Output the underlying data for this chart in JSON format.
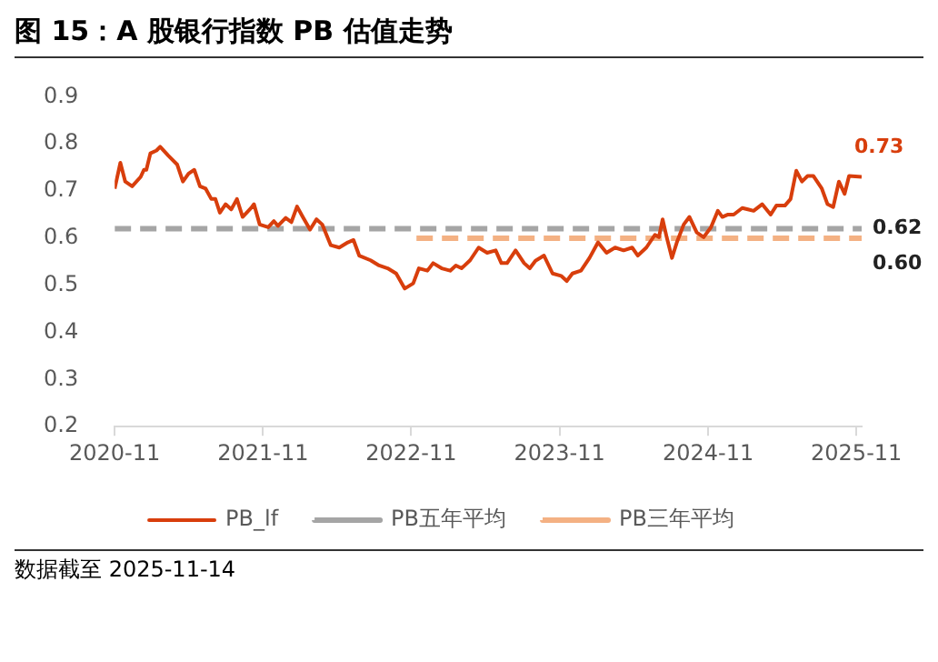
{
  "chart_data": {
    "type": "line",
    "title": "图 15：A 股银行指数 PB 估值走势",
    "xlim": [
      "2020-11",
      "2025-11-14"
    ],
    "xticks": [
      "2020-11",
      "2021-11",
      "2022-11",
      "2023-11",
      "2024-11",
      "2025-11"
    ],
    "ylim": [
      0.2,
      0.9
    ],
    "yticks": [
      0.2,
      0.3,
      0.4,
      0.5,
      0.6,
      0.7,
      0.8,
      0.9
    ],
    "grid": false,
    "legend": "bottom",
    "marker": "none",
    "annotations": [
      "数据截至 2025-11-14"
    ],
    "series": [
      {
        "name": "PB_lf",
        "color": "#d83e0c",
        "line_style": "solid",
        "x": [
          "2020-11-01",
          "2020-11-15",
          "2020-11-27",
          "2020-12-14",
          "2021-01-04",
          "2021-01-12",
          "2021-01-18",
          "2021-01-28",
          "2021-02-12",
          "2021-02-21",
          "2021-03-13",
          "2021-04-04",
          "2021-04-18",
          "2021-05-02",
          "2021-05-16",
          "2021-05-30",
          "2021-06-13",
          "2021-06-27",
          "2021-07-07",
          "2021-07-18",
          "2021-08-01",
          "2021-08-15",
          "2021-08-29",
          "2021-09-12",
          "2021-10-03",
          "2021-10-10",
          "2021-10-24",
          "2021-11-14",
          "2021-11-28",
          "2021-12-08",
          "2021-12-27",
          "2022-01-10",
          "2022-01-24",
          "2022-02-07",
          "2022-02-25",
          "2022-03-13",
          "2022-03-27",
          "2022-04-17",
          "2022-05-08",
          "2022-05-29",
          "2022-06-12",
          "2022-06-26",
          "2022-07-24",
          "2022-08-14",
          "2022-09-04",
          "2022-09-25",
          "2022-10-16",
          "2022-11-06",
          "2022-11-20",
          "2022-12-11",
          "2022-12-25",
          "2023-01-15",
          "2023-02-05",
          "2023-02-19",
          "2023-03-05",
          "2023-03-26",
          "2023-04-16",
          "2023-05-07",
          "2023-05-28",
          "2023-06-11",
          "2023-06-25",
          "2023-07-16",
          "2023-08-06",
          "2023-08-20",
          "2023-09-03",
          "2023-09-24",
          "2023-10-15",
          "2023-11-05",
          "2023-11-19",
          "2023-12-03",
          "2023-12-24",
          "2024-01-14",
          "2024-02-04",
          "2024-02-25",
          "2024-03-17",
          "2024-04-07",
          "2024-04-28",
          "2024-05-12",
          "2024-06-02",
          "2024-06-23",
          "2024-07-03",
          "2024-07-12",
          "2024-07-22",
          "2024-08-04",
          "2024-08-16",
          "2024-09-02",
          "2024-09-16",
          "2024-10-04",
          "2024-10-21",
          "2024-11-08",
          "2024-11-25",
          "2024-12-06",
          "2024-12-20",
          "2025-01-03",
          "2025-01-24",
          "2025-02-07",
          "2025-02-21",
          "2025-03-14",
          "2025-04-04",
          "2025-04-18",
          "2025-05-09",
          "2025-05-23",
          "2025-06-06",
          "2025-06-20",
          "2025-07-04",
          "2025-07-18",
          "2025-08-08",
          "2025-08-22",
          "2025-09-05",
          "2025-09-19",
          "2025-10-03",
          "2025-10-14",
          "2025-11-14"
        ],
        "values": [
          0.705,
          0.76,
          0.72,
          0.71,
          0.73,
          0.745,
          0.745,
          0.78,
          0.786,
          0.794,
          0.775,
          0.756,
          0.72,
          0.737,
          0.745,
          0.71,
          0.705,
          0.683,
          0.683,
          0.654,
          0.672,
          0.661,
          0.683,
          0.645,
          0.664,
          0.672,
          0.629,
          0.623,
          0.636,
          0.626,
          0.643,
          0.634,
          0.667,
          0.645,
          0.618,
          0.64,
          0.629,
          0.585,
          0.58,
          0.591,
          0.596,
          0.563,
          0.553,
          0.542,
          0.536,
          0.525,
          0.493,
          0.504,
          0.536,
          0.531,
          0.547,
          0.536,
          0.531,
          0.542,
          0.536,
          0.553,
          0.58,
          0.569,
          0.574,
          0.547,
          0.547,
          0.574,
          0.547,
          0.536,
          0.552,
          0.563,
          0.525,
          0.52,
          0.509,
          0.525,
          0.531,
          0.558,
          0.591,
          0.569,
          0.58,
          0.574,
          0.58,
          0.563,
          0.58,
          0.607,
          0.602,
          0.64,
          0.602,
          0.558,
          0.591,
          0.629,
          0.645,
          0.612,
          0.602,
          0.623,
          0.658,
          0.645,
          0.65,
          0.65,
          0.664,
          0.661,
          0.658,
          0.672,
          0.65,
          0.669,
          0.669,
          0.683,
          0.743,
          0.72,
          0.732,
          0.732,
          0.705,
          0.672,
          0.666,
          0.72,
          0.694,
          0.732,
          0.73
        ],
        "value_labels": [
          null,
          null,
          null,
          null,
          null,
          null,
          null,
          null,
          null,
          null,
          null,
          null,
          null,
          null,
          null,
          null,
          null,
          null,
          null,
          null,
          null,
          null,
          null,
          null,
          null,
          null,
          null,
          null,
          null,
          null,
          null,
          null,
          null,
          null,
          null,
          null,
          null,
          null,
          null,
          null,
          null,
          null,
          null,
          null,
          null,
          null,
          null,
          null,
          null,
          null,
          null,
          null,
          null,
          null,
          null,
          null,
          null,
          null,
          null,
          null,
          null,
          null,
          null,
          null,
          null,
          null,
          null,
          null,
          null,
          null,
          null,
          null,
          null,
          null,
          null,
          null,
          null,
          null,
          null,
          null,
          null,
          null,
          null,
          null,
          null,
          null,
          null,
          null,
          null,
          null,
          null,
          null,
          null,
          null,
          null,
          null,
          null,
          null,
          null,
          null,
          null,
          null,
          null,
          null,
          null,
          null,
          null,
          null,
          null,
          null,
          null,
          null,
          "0.73"
        ]
      },
      {
        "name": "PB五年平均",
        "color": "#a5a5a5",
        "line_style": "dashed",
        "x": [
          "2020-11-01",
          "2025-11-14"
        ],
        "values": [
          0.62,
          0.62
        ],
        "value_labels": [
          null,
          "0.62"
        ]
      },
      {
        "name": "PB三年平均",
        "color": "#f4b183",
        "line_style": "dashed",
        "x": [
          "2022-11-14",
          "2025-11-14"
        ],
        "values": [
          0.6,
          0.6
        ],
        "value_labels": [
          null,
          "0.60"
        ]
      }
    ]
  }
}
